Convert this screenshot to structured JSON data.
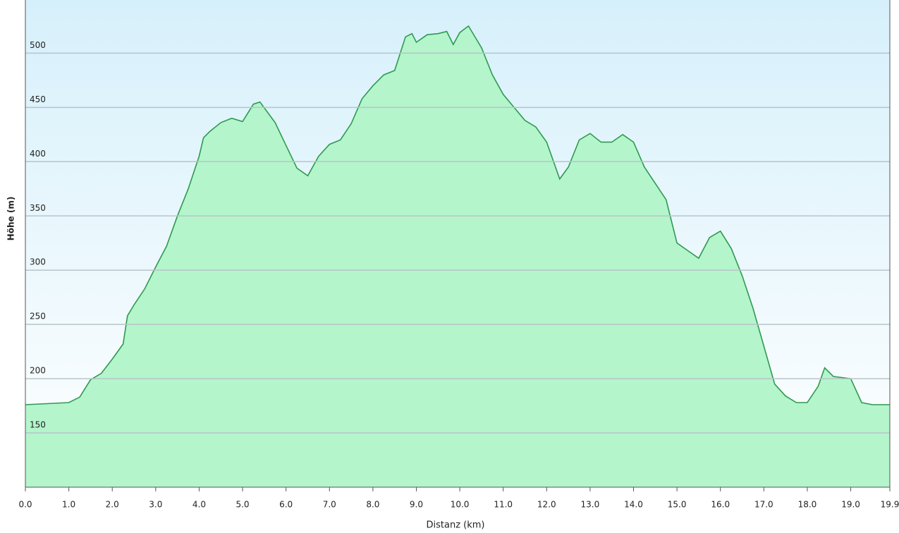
{
  "chart_data": {
    "type": "area",
    "x_label": "Distanz  (km)",
    "y_label": "Höhe (m)",
    "x": [
      0,
      0.5,
      1.0,
      1.25,
      1.5,
      1.75,
      2.0,
      2.25,
      2.35,
      2.5,
      2.75,
      3.0,
      3.25,
      3.5,
      3.75,
      4.0,
      4.1,
      4.25,
      4.5,
      4.75,
      5.0,
      5.25,
      5.4,
      5.75,
      6.0,
      6.25,
      6.5,
      6.75,
      7.0,
      7.25,
      7.5,
      7.75,
      8.0,
      8.25,
      8.5,
      8.75,
      8.9,
      9.0,
      9.25,
      9.5,
      9.7,
      9.85,
      10.0,
      10.2,
      10.5,
      10.75,
      11.0,
      11.25,
      11.5,
      11.75,
      12.0,
      12.3,
      12.5,
      12.75,
      13.0,
      13.25,
      13.5,
      13.75,
      14.0,
      14.25,
      14.5,
      14.75,
      15.0,
      15.25,
      15.5,
      15.75,
      16.0,
      16.25,
      16.5,
      16.75,
      17.0,
      17.25,
      17.5,
      17.75,
      18.0,
      18.25,
      18.4,
      18.6,
      19.0,
      19.25,
      19.5,
      19.9
    ],
    "series": [
      {
        "color": "#2e9a4e",
        "fill": "#b4f5cc",
        "values": [
          176,
          177,
          178,
          183,
          199,
          205,
          218,
          232,
          258,
          268,
          283,
          303,
          322,
          350,
          375,
          405,
          422,
          428,
          436,
          440,
          437,
          453,
          455,
          436,
          415,
          394,
          387,
          405,
          416,
          420,
          435,
          458,
          470,
          480,
          484,
          515,
          518,
          510,
          517,
          518,
          520,
          508,
          519,
          525,
          505,
          480,
          462,
          450,
          438,
          432,
          418,
          384,
          395,
          420,
          426,
          418,
          418,
          425,
          418,
          395,
          380,
          365,
          325,
          318,
          311,
          330,
          336,
          320,
          295,
          265,
          230,
          195,
          184,
          178,
          178,
          193,
          210,
          202,
          200,
          178,
          176,
          176
        ]
      }
    ],
    "xlim": [
      0,
      19.9
    ],
    "ylim": [
      100,
      549
    ],
    "xticks": [
      {
        "value": 0,
        "label": "0.0"
      },
      {
        "value": 1,
        "label": "1.0"
      },
      {
        "value": 2,
        "label": "2.0"
      },
      {
        "value": 3,
        "label": "3.0"
      },
      {
        "value": 4,
        "label": "4.0"
      },
      {
        "value": 5,
        "label": "5.0"
      },
      {
        "value": 6,
        "label": "6.0"
      },
      {
        "value": 7,
        "label": "7.0"
      },
      {
        "value": 8,
        "label": "8.0"
      },
      {
        "value": 9,
        "label": "9.0"
      },
      {
        "value": 10,
        "label": "10.0"
      },
      {
        "value": 11,
        "label": "11.0"
      },
      {
        "value": 12,
        "label": "12.0"
      },
      {
        "value": 13,
        "label": "13.0"
      },
      {
        "value": 14,
        "label": "14.0"
      },
      {
        "value": 15,
        "label": "15.0"
      },
      {
        "value": 16,
        "label": "16.0"
      },
      {
        "value": 17,
        "label": "17.0"
      },
      {
        "value": 18,
        "label": "18.0"
      },
      {
        "value": 19,
        "label": "19.0"
      },
      19.9
    ],
    "yticks": [
      150,
      200,
      250,
      300,
      350,
      400,
      450,
      500
    ],
    "grid": true
  }
}
